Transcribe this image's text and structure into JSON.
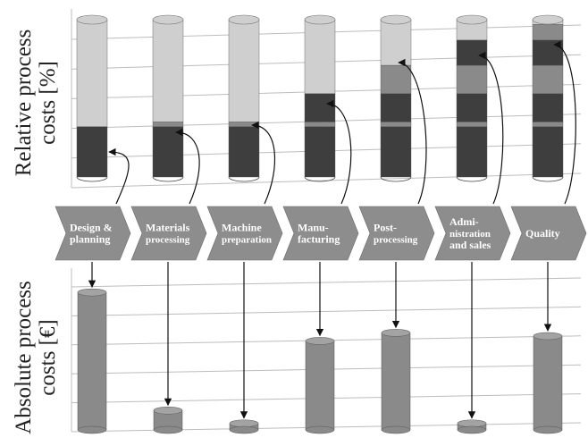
{
  "colors": {
    "background": "#ffffff",
    "grid": "#bdbdbd",
    "segment_dark": "#3e3e3e",
    "segment_mid": "#8a8a8a",
    "segment_light": "#cfcfcf",
    "arrow_fill": "#8d8d8d",
    "bar_fill": "#8a8a8a"
  },
  "labels": {
    "top_y_line1": "Relative process",
    "top_y_line2": "costs [%]",
    "bottom_y_line1": "Absolute process",
    "bottom_y_line2": "costs [€]"
  },
  "chart_data": [
    {
      "type": "bar",
      "stacked": true,
      "categories": [
        "Design & planning",
        "Materials processing",
        "Machine preparation",
        "Manu-facturing",
        "Post-processing",
        "Admi-nistration and sales",
        "Quality"
      ],
      "series": [
        {
          "values": [
            32,
            32,
            32,
            32,
            32,
            32,
            32
          ]
        },
        {
          "values": [
            0,
            3,
            3,
            3,
            3,
            3,
            3
          ]
        },
        {
          "values": [
            0,
            0,
            0,
            18,
            18,
            18,
            18
          ]
        },
        {
          "values": [
            0,
            0,
            0,
            0,
            18,
            18,
            18
          ]
        },
        {
          "values": [
            0,
            0,
            0,
            0,
            0,
            16,
            16
          ]
        },
        {
          "values": [
            0,
            0,
            0,
            0,
            0,
            0,
            10
          ]
        },
        {
          "values": [
            68,
            65,
            65,
            47,
            29,
            13,
            3
          ]
        }
      ],
      "ylim": [
        0,
        100
      ],
      "grid": true,
      "ylabel": "Relative process costs [%]"
    },
    {
      "type": "bar",
      "categories": [
        "Design & planning",
        "Materials processing",
        "Machine preparation",
        "Manu-facturing",
        "Post-processing",
        "Admi-nistration and sales",
        "Quality"
      ],
      "values": [
        85,
        12,
        4,
        55,
        60,
        4,
        58
      ],
      "ylim": [
        0,
        100
      ],
      "grid": true,
      "ylabel": "Absolute process costs [€]"
    }
  ],
  "process_chain": [
    {
      "lines": [
        "Design &",
        "planning"
      ]
    },
    {
      "lines": [
        "Materials",
        "processing"
      ]
    },
    {
      "lines": [
        "Machine",
        "preparation"
      ]
    },
    {
      "lines": [
        "Manu-",
        "facturing"
      ]
    },
    {
      "lines": [
        "Post-",
        "processing"
      ]
    },
    {
      "lines": [
        "Admi-",
        "nistration",
        "and sales"
      ]
    },
    {
      "lines": [
        "Quality"
      ]
    }
  ]
}
